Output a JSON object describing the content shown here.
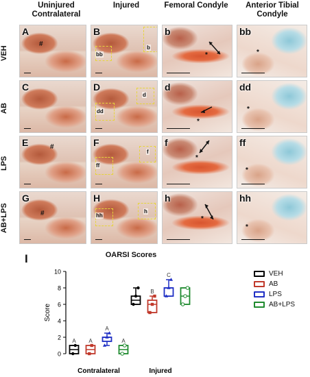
{
  "column_headers": [
    "Uninjured Contralateral",
    "Injured",
    "Femoral Condyle",
    "Anterior Tibial Condyle"
  ],
  "rows": [
    {
      "label": "VEH",
      "panels": [
        "A",
        "B",
        "b",
        "bb"
      ],
      "inset_labels": [
        "bb",
        "b"
      ]
    },
    {
      "label": "AB",
      "panels": [
        "C",
        "D",
        "d",
        "dd"
      ],
      "inset_labels": [
        "dd",
        "d"
      ]
    },
    {
      "label": "LPS",
      "panels": [
        "E",
        "F",
        "f",
        "ff"
      ],
      "inset_labels": [
        "ff",
        "f"
      ]
    },
    {
      "label": "AB+LPS",
      "panels": [
        "G",
        "H",
        "h",
        "hh"
      ],
      "inset_labels": [
        "hh",
        "h"
      ]
    }
  ],
  "figure_panel_label": "I",
  "chart_data": {
    "type": "box",
    "title": "OARSI Scores",
    "ylabel": "Score",
    "xlabel_groups": [
      "Contralateral",
      "Injured"
    ],
    "ylim": [
      0,
      10
    ],
    "yticks": [
      0,
      2,
      4,
      6,
      8,
      10
    ],
    "series": [
      {
        "name": "VEH",
        "color": "#000000",
        "contralateral": {
          "min": 0,
          "q1": 0,
          "median": 0.5,
          "q3": 1,
          "max": 1,
          "letter": "A"
        },
        "injured": {
          "min": 6,
          "q1": 6,
          "median": 6.5,
          "q3": 7,
          "max": 8
        }
      },
      {
        "name": "AB",
        "color": "#c0392b",
        "contralateral": {
          "min": 0,
          "q1": 0,
          "median": 0.5,
          "q3": 1,
          "max": 1,
          "letter": "A"
        },
        "injured": {
          "min": 5,
          "q1": 5,
          "median": 6,
          "q3": 6.5,
          "max": 7,
          "letter": "B"
        }
      },
      {
        "name": "LPS",
        "color": "#1f2fc4",
        "contralateral": {
          "min": 1,
          "q1": 1.5,
          "median": 2,
          "q3": 2,
          "max": 2.5,
          "letter": "A"
        },
        "injured": {
          "min": 7,
          "q1": 7,
          "median": 8,
          "q3": 8,
          "max": 9,
          "letter": "C"
        }
      },
      {
        "name": "AB+LPS",
        "color": "#1e8a2e",
        "contralateral": {
          "min": 0,
          "q1": 0,
          "median": 0.5,
          "q3": 1,
          "max": 1,
          "letter": "A"
        },
        "injured": {
          "min": 6,
          "q1": 6,
          "median": 7,
          "q3": 8,
          "max": 8
        }
      }
    ],
    "points": {
      "VEH": {
        "contralateral": [
          0,
          1
        ],
        "injured": [
          6,
          7,
          8
        ]
      },
      "AB": {
        "contralateral": [
          0,
          1
        ],
        "injured": [
          5,
          6,
          7
        ]
      },
      "LPS": {
        "contralateral": [
          1,
          2,
          2.5
        ],
        "injured": [
          7,
          8,
          9
        ]
      },
      "AB+LPS": {
        "contralateral": [
          0,
          1
        ],
        "injured": [
          6,
          7,
          8
        ]
      }
    },
    "legend_position": "right"
  }
}
